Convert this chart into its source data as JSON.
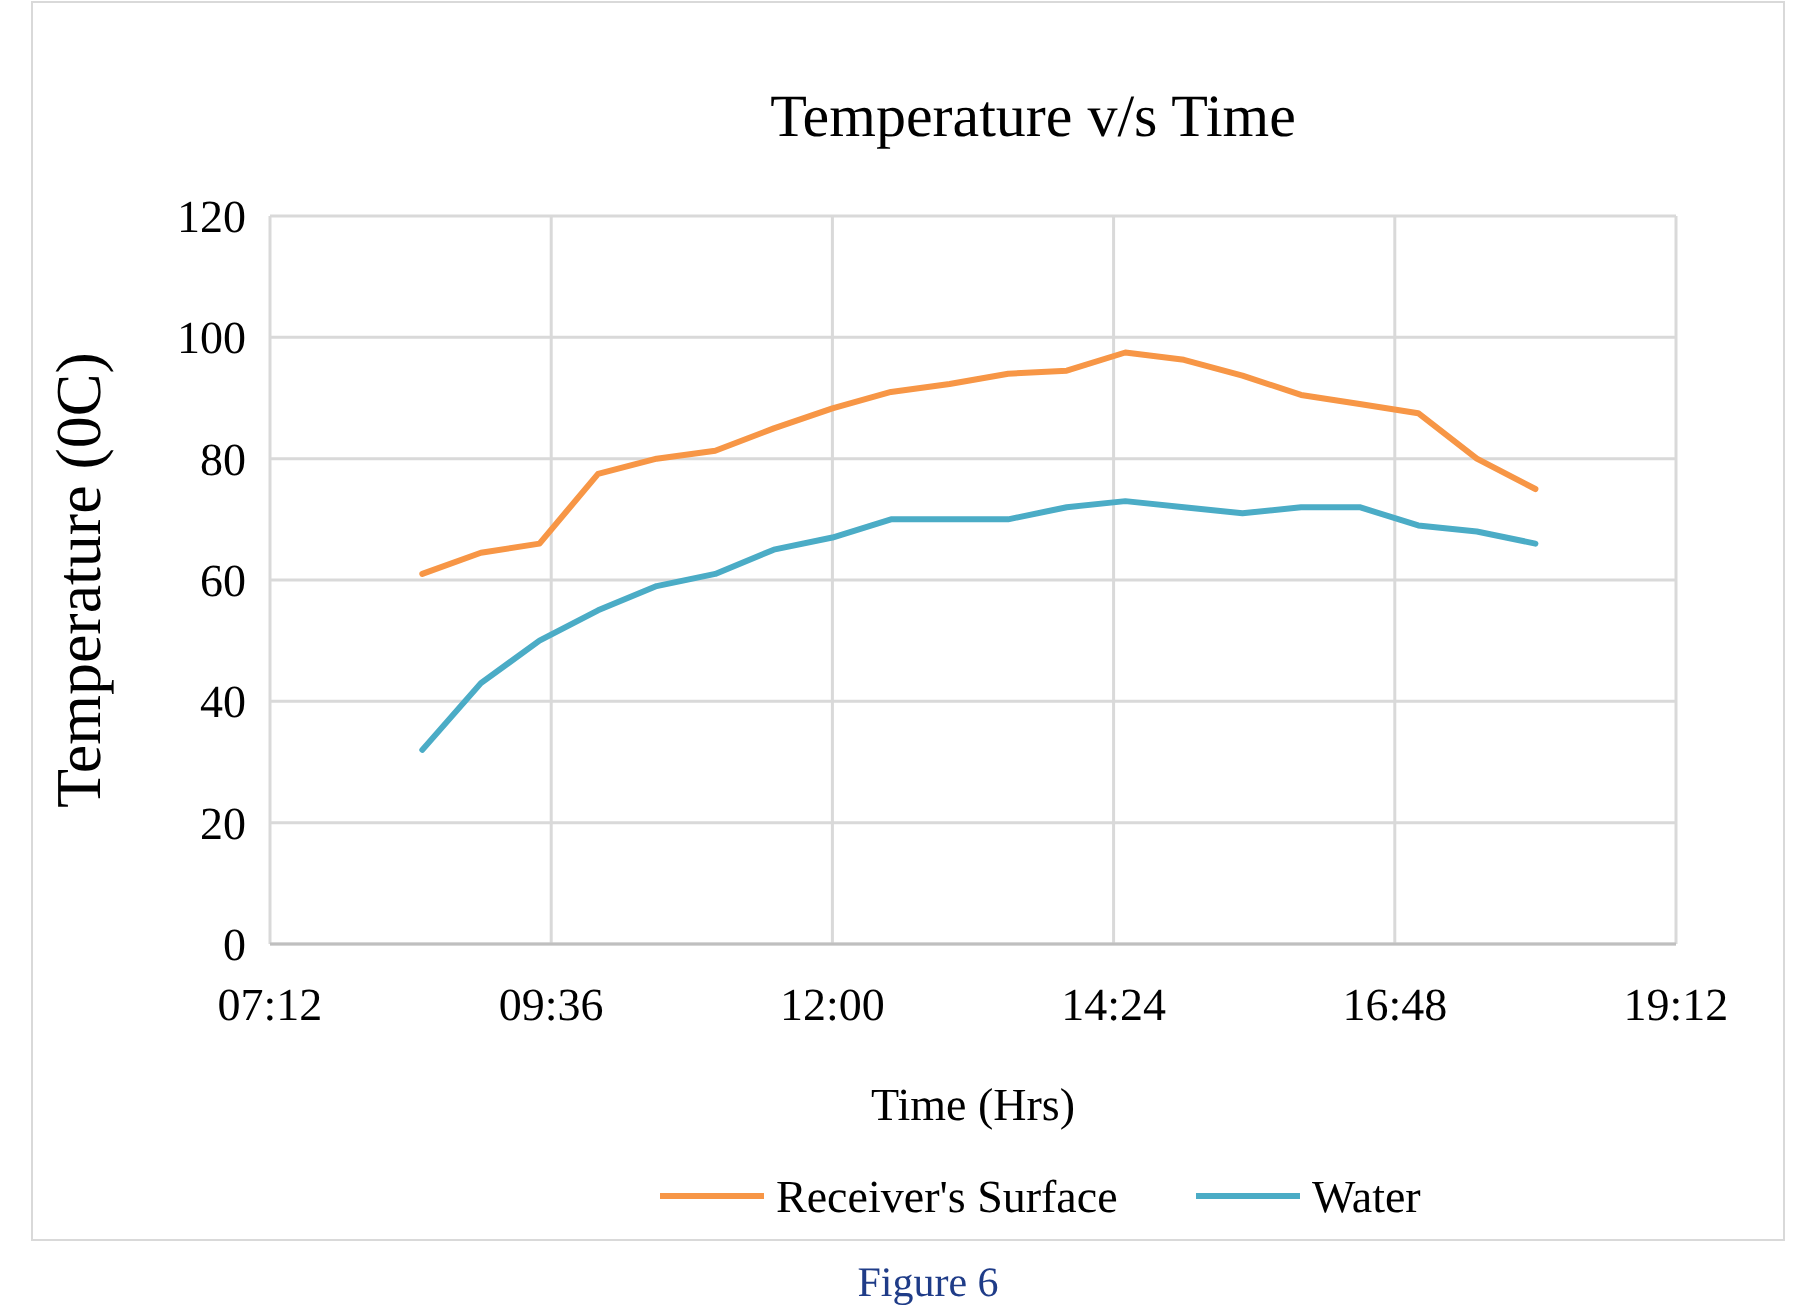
{
  "chart_data": {
    "type": "line",
    "title": "Temperature v/s Time",
    "xlabel": "Time (Hrs)",
    "ylabel": "Temperature (0C)",
    "x": [
      8.5,
      9,
      9.5,
      10,
      10.5,
      11,
      11.5,
      12,
      12.5,
      13,
      13.5,
      14,
      14.5,
      15,
      15.5,
      16,
      16.5,
      17,
      17.5,
      18
    ],
    "series": [
      {
        "name": "Receiver's Surface",
        "color": "#f79646",
        "values": [
          61,
          64.5,
          66,
          77.5,
          80,
          81.3,
          85,
          88.3,
          91,
          92.3,
          94,
          94.5,
          97.5,
          96.3,
          93.7,
          90.5,
          89,
          87.5,
          80,
          75
        ]
      },
      {
        "name": "Water",
        "color": "#4bacc6",
        "values": [
          32,
          43,
          50,
          55,
          59,
          61,
          65,
          67,
          70,
          70,
          70,
          72,
          73,
          72,
          71,
          72,
          72,
          69,
          68,
          66
        ]
      }
    ],
    "xlim": [
      7.2,
      19.2
    ],
    "xticks": [
      {
        "value": 7.2,
        "label": "07:12"
      },
      {
        "value": 9.6,
        "label": "09:36"
      },
      {
        "value": 12,
        "label": "12:00"
      },
      {
        "value": 14.4,
        "label": "14:24"
      },
      {
        "value": 16.8,
        "label": "16:48"
      },
      {
        "value": 19.2,
        "label": "19:12"
      }
    ],
    "ylim": [
      0,
      120
    ],
    "yticks": [
      0,
      20,
      40,
      60,
      80,
      100,
      120
    ],
    "grid": true,
    "legend": "bottom",
    "marker": "none",
    "line_style": "solid",
    "annotations": [
      "Figure 6"
    ]
  }
}
